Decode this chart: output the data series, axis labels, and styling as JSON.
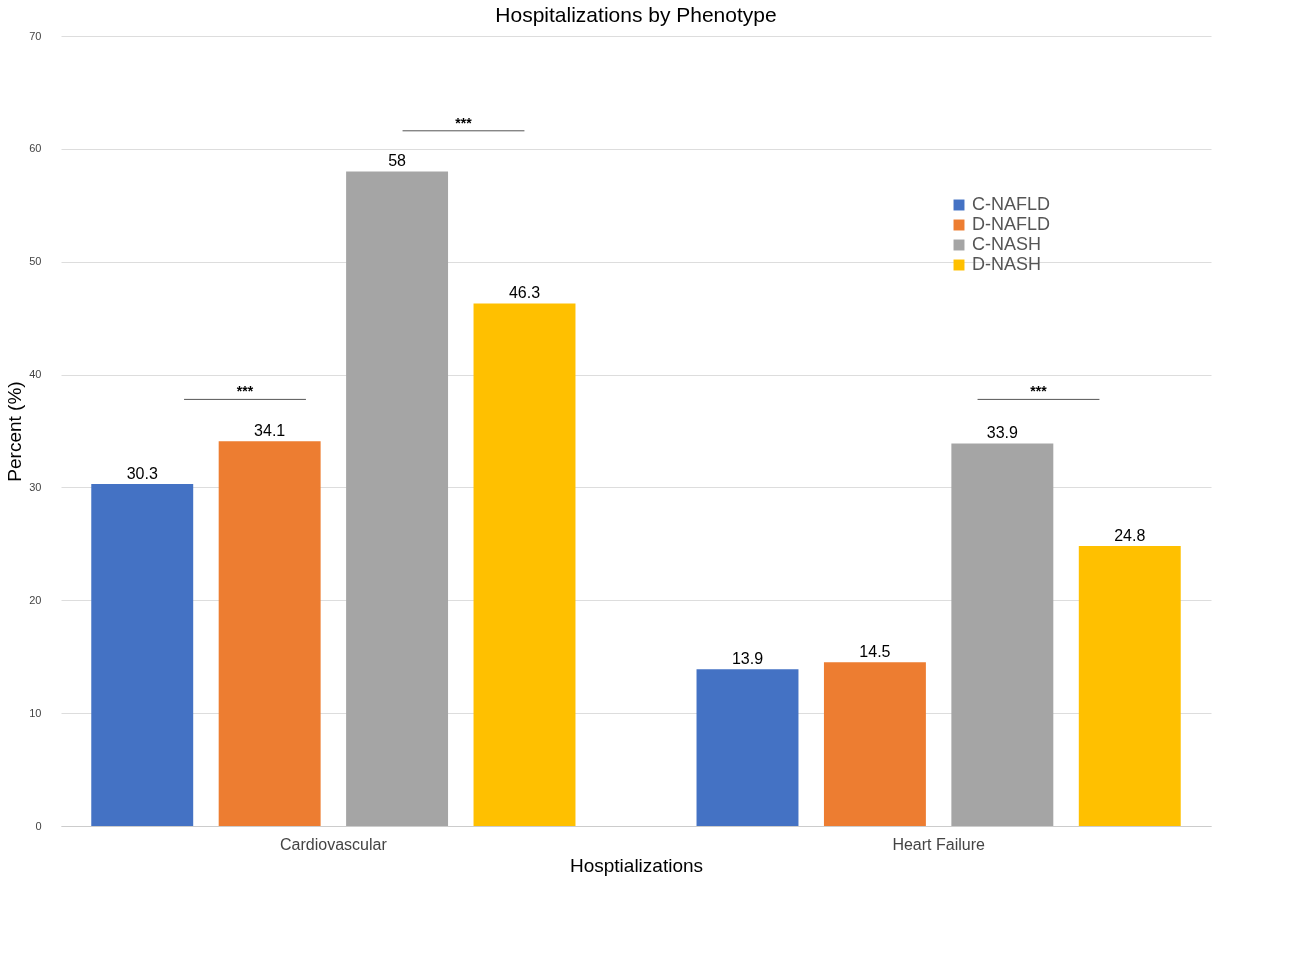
{
  "chart_data": {
    "type": "bar",
    "title": "Hospitalizations by Phenotype",
    "xlabel": "Hosptializations",
    "ylabel": "Percent (%)",
    "categories": [
      "Cardiovascular",
      "Heart Failure"
    ],
    "series": [
      {
        "name": "C-NAFLD",
        "color": "#4472c4",
        "values": [
          30.3,
          13.9
        ]
      },
      {
        "name": "D-NAFLD",
        "color": "#ed7d31",
        "values": [
          34.1,
          14.5
        ]
      },
      {
        "name": "C-NASH",
        "color": "#a5a5a5",
        "values": [
          58,
          33.9
        ]
      },
      {
        "name": "D-NASH",
        "color": "#ffc000",
        "values": [
          46.3,
          24.8
        ]
      }
    ],
    "ylim": [
      0,
      70
    ],
    "yticks": [
      0,
      10,
      20,
      30,
      40,
      50,
      60,
      70
    ],
    "grid": "y",
    "legend": "top right",
    "data_labels": true,
    "annotations": [
      "***",
      "***",
      "***"
    ]
  }
}
